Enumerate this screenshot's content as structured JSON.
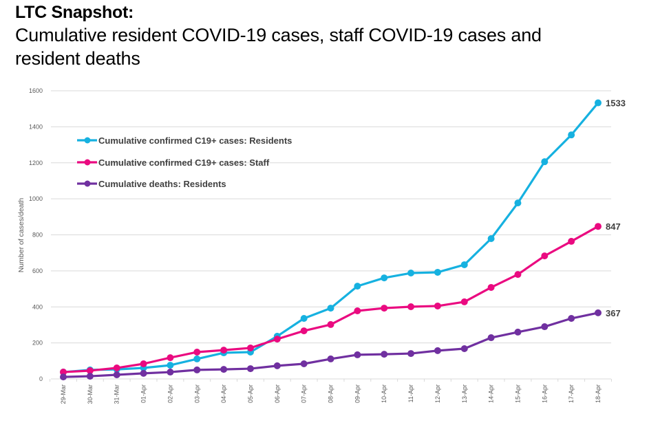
{
  "header": {
    "title": "LTC Snapshot:",
    "subtitle": "Cumulative resident COVID-19 cases, staff COVID-19 cases and resident deaths"
  },
  "chart_data": {
    "type": "line",
    "title": "Cumulative resident COVID-19 cases, staff COVID-19 cases and resident deaths",
    "xlabel": "",
    "ylabel": "Number of cases/death",
    "ylim": [
      0,
      1600
    ],
    "yticks": [
      0,
      200,
      400,
      600,
      800,
      1000,
      1200,
      1400,
      1600
    ],
    "grid": true,
    "legend_position": "top-left",
    "categories": [
      "29-Mar",
      "30-Mar",
      "31-Mar",
      "01-Apr",
      "02-Apr",
      "03-Apr",
      "04-Apr",
      "05-Apr",
      "06-Apr",
      "07-Apr",
      "08-Apr",
      "09-Apr",
      "10-Apr",
      "11-Apr",
      "12-Apr",
      "13-Apr",
      "14-Apr",
      "15-Apr",
      "16-Apr",
      "17-Apr",
      "18-Apr"
    ],
    "series": [
      {
        "name": "Cumulative confirmed C19+ cases: Residents",
        "color": "#16b1e0",
        "values": [
          38,
          50,
          53,
          61,
          76,
          111,
          145,
          149,
          237,
          336,
          393,
          515,
          561,
          588,
          592,
          634,
          779,
          977,
          1206,
          1355,
          1533
        ],
        "end_label": "1533"
      },
      {
        "name": "Cumulative confirmed C19+ cases: Staff",
        "color": "#ea0a80",
        "values": [
          38,
          46,
          61,
          84,
          118,
          149,
          160,
          172,
          221,
          267,
          302,
          378,
          393,
          401,
          405,
          428,
          508,
          580,
          683,
          764,
          847
        ],
        "end_label": "847"
      },
      {
        "name": "Cumulative deaths: Residents",
        "color": "#7030a0",
        "values": [
          11,
          15,
          23,
          31,
          38,
          50,
          53,
          57,
          73,
          84,
          111,
          134,
          137,
          141,
          157,
          168,
          229,
          260,
          290,
          336,
          367
        ],
        "end_label": "367"
      }
    ]
  }
}
